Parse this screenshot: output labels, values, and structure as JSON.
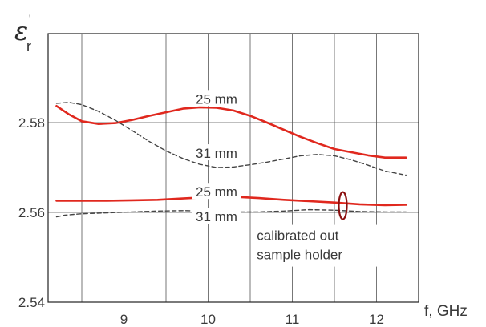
{
  "chart_data": {
    "type": "line",
    "ylabel": {
      "symbol": "ε",
      "prime": "'",
      "subscript": "r"
    },
    "xlabel": "f, GHz",
    "xlim": [
      8.1,
      12.5
    ],
    "ylim": [
      2.54,
      2.58
    ],
    "x_ticks": [
      9,
      10,
      11,
      12
    ],
    "y_ticks": [
      2.54,
      2.56,
      2.58
    ],
    "y_tick_labels": [
      "2.54",
      "2.56",
      "2.58"
    ],
    "x_tick_labels": [
      "9",
      "10",
      "11",
      "12"
    ],
    "x_gridlines": [
      8.5,
      9,
      9.5,
      10,
      10.5,
      11,
      11.5,
      12
    ],
    "y_gridlines": [
      2.56,
      2.58
    ],
    "series": [
      {
        "style": "solid",
        "color": "#e0281e",
        "x": [
          8.2,
          8.35,
          8.5,
          8.7,
          8.9,
          9.1,
          9.3,
          9.5,
          9.7,
          9.9,
          10.1,
          10.3,
          10.5,
          10.7,
          10.9,
          11.1,
          11.3,
          11.5,
          11.7,
          11.9,
          12.1,
          12.35
        ],
        "y": [
          2.5837,
          2.5818,
          2.5803,
          2.5797,
          2.5799,
          2.5806,
          2.5815,
          2.5823,
          2.5831,
          2.5834,
          2.5833,
          2.5827,
          2.5815,
          2.58,
          2.5784,
          2.5768,
          2.5754,
          2.5741,
          2.5734,
          2.5727,
          2.5722,
          2.5722
        ]
      },
      {
        "style": "dashed",
        "color": "#444444",
        "x": [
          8.2,
          8.35,
          8.5,
          8.7,
          8.9,
          9.1,
          9.3,
          9.5,
          9.7,
          9.9,
          10.1,
          10.3,
          10.5,
          10.7,
          10.9,
          11.1,
          11.3,
          11.5,
          11.7,
          11.9,
          12.1,
          12.35
        ],
        "y": [
          2.5843,
          2.5845,
          2.584,
          2.5825,
          2.5805,
          2.5782,
          2.5758,
          2.5737,
          2.572,
          2.5707,
          2.57,
          2.5701,
          2.5706,
          2.5712,
          2.5719,
          2.5726,
          2.5729,
          2.5726,
          2.5717,
          2.5705,
          2.5692,
          2.5683
        ]
      },
      {
        "style": "solid",
        "color": "#e0281e",
        "x": [
          8.2,
          8.5,
          8.8,
          9.1,
          9.4,
          9.7,
          10.0,
          10.3,
          10.6,
          10.9,
          11.2,
          11.5,
          11.8,
          12.1,
          12.35
        ],
        "y": [
          2.5626,
          2.5626,
          2.5626,
          2.5627,
          2.5628,
          2.5631,
          2.5634,
          2.5635,
          2.5632,
          2.5628,
          2.5625,
          2.5622,
          2.5618,
          2.5616,
          2.5617
        ]
      },
      {
        "style": "dashed",
        "color": "#444444",
        "x": [
          8.2,
          8.3,
          8.5,
          8.8,
          9.1,
          9.4,
          9.7,
          10.0,
          10.3,
          10.6,
          10.9,
          11.2,
          11.5,
          11.8,
          12.1,
          12.35
        ],
        "y": [
          2.559,
          2.5594,
          2.5597,
          2.5599,
          2.5601,
          2.5603,
          2.5604,
          2.5603,
          2.5601,
          2.5601,
          2.5603,
          2.5606,
          2.5605,
          2.5602,
          2.5601,
          2.5601
        ]
      }
    ],
    "series_labels": [
      {
        "text": "25 mm",
        "x": 10.1,
        "y": 2.5853
      },
      {
        "text": "31 mm",
        "x": 10.1,
        "y": 2.5732
      },
      {
        "text": "25 mm",
        "x": 10.1,
        "y": 2.5646
      },
      {
        "text": "31 mm",
        "x": 10.1,
        "y": 2.5591
      }
    ],
    "annotation": {
      "lines": [
        "calibrated out",
        "sample holder"
      ],
      "marker_x": 11.6,
      "marker_y": 2.5615,
      "text_x": 11.15,
      "text_y": 2.5565,
      "marker_color": "#8b1010"
    }
  }
}
